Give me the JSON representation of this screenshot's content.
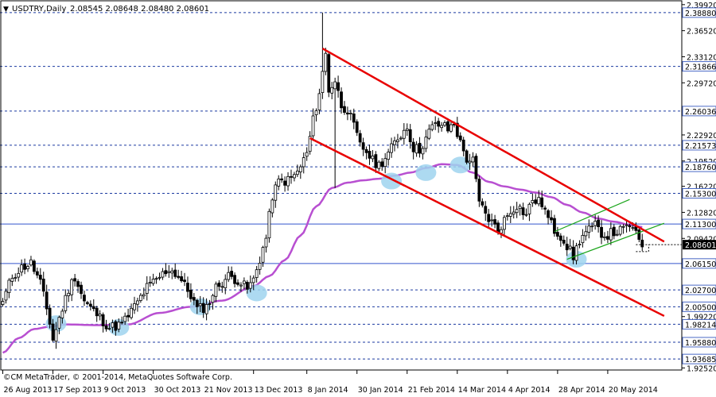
{
  "header": {
    "menu_glyph": "▼",
    "symbol": "USDTRY,Daily",
    "ohlc": "2.08545 2.08648 2.08480 2.08601"
  },
  "copyright": "©CM MetaTrader, © 2001-2014, MetaQuotes Software Corp.",
  "colors": {
    "background": "#ffffff",
    "candle": "#000000",
    "ma": "#b84fd1",
    "channel": "#e80000",
    "trendline": "#18a418",
    "highlight": "#9fd4ef",
    "h_blue": "#3355cc",
    "h_dash": "#1b3aa0",
    "current_price_bg": "#000000"
  },
  "chart_data": {
    "type": "candlestick",
    "symbol": "USDTRY",
    "timeframe": "Daily",
    "ylim": [
      1.9225,
      2.4042
    ],
    "price_axis_ticks": [
      "2.39920",
      "2.36520",
      "2.33120",
      "2.29720",
      "2.26320",
      "2.22920",
      "2.19520",
      "2.16220",
      "2.12820",
      "2.09420",
      "2.06020",
      "2.02620",
      "1.99220",
      "1.95820",
      "1.92520"
    ],
    "x_tick_labels": [
      "26 Aug 2013",
      "17 Sep 2013",
      "9 Oct 2013",
      "30 Oct 2013",
      "21 Nov 2013",
      "13 Dec 2013",
      "8 Jan 2014",
      "30 Jan 2014",
      "21 Feb 2014",
      "14 Mar 2014",
      "4 Apr 2014",
      "28 Apr 2014",
      "20 May 2014"
    ],
    "x_tick_index": [
      0,
      16,
      32,
      48,
      64,
      80,
      97,
      113,
      129,
      145,
      161,
      177,
      193
    ],
    "horizontal_levels": [
      {
        "price": "2.38880",
        "style": "dashed"
      },
      {
        "price": "2.31866",
        "style": "dashed"
      },
      {
        "price": "2.26036",
        "style": "dashed"
      },
      {
        "price": "2.21573",
        "style": "dashed"
      },
      {
        "price": "2.18760",
        "style": "dashed"
      },
      {
        "price": "2.15300",
        "style": "dashed"
      },
      {
        "price": "2.11300",
        "style": "solid"
      },
      {
        "price": "2.06150",
        "style": "solid"
      },
      {
        "price": "2.02700",
        "style": "dashed"
      },
      {
        "price": "2.00500",
        "style": "dashed"
      },
      {
        "price": "1.98214",
        "style": "dashed"
      },
      {
        "price": "1.95880",
        "style": "dashed"
      },
      {
        "price": "1.93685",
        "style": "dashed"
      }
    ],
    "current_price": "2.08601",
    "keypoints": [
      [
        0,
        2.012
      ],
      [
        3,
        2.045
      ],
      [
        6,
        2.056
      ],
      [
        9,
        2.062
      ],
      [
        12,
        2.036
      ],
      [
        15,
        1.985
      ],
      [
        16,
        1.962
      ],
      [
        18,
        1.99
      ],
      [
        21,
        2.028
      ],
      [
        23,
        2.045
      ],
      [
        26,
        2.012
      ],
      [
        30,
        1.995
      ],
      [
        34,
        1.978
      ],
      [
        38,
        1.982
      ],
      [
        42,
        2.005
      ],
      [
        46,
        2.03
      ],
      [
        49,
        2.04
      ],
      [
        53,
        2.055
      ],
      [
        56,
        2.045
      ],
      [
        60,
        2.02
      ],
      [
        62,
        2.002
      ],
      [
        65,
        2.005
      ],
      [
        68,
        2.03
      ],
      [
        72,
        2.045
      ],
      [
        75,
        2.04
      ],
      [
        78,
        2.028
      ],
      [
        80,
        2.04
      ],
      [
        84,
        2.095
      ],
      [
        86,
        2.15
      ],
      [
        88,
        2.168
      ],
      [
        91,
        2.17
      ],
      [
        94,
        2.18
      ],
      [
        97,
        2.205
      ],
      [
        99,
        2.248
      ],
      [
        101,
        2.285
      ],
      [
        103,
        2.335
      ],
      [
        104,
        2.288
      ],
      [
        106,
        2.3
      ],
      [
        108,
        2.268
      ],
      [
        110,
        2.262
      ],
      [
        112,
        2.24
      ],
      [
        114,
        2.215
      ],
      [
        116,
        2.208
      ],
      [
        118,
        2.195
      ],
      [
        120,
        2.19
      ],
      [
        123,
        2.205
      ],
      [
        126,
        2.225
      ],
      [
        129,
        2.24
      ],
      [
        131,
        2.212
      ],
      [
        133,
        2.21
      ],
      [
        135,
        2.225
      ],
      [
        137,
        2.24
      ],
      [
        140,
        2.243
      ],
      [
        142,
        2.236
      ],
      [
        144,
        2.245
      ],
      [
        146,
        2.218
      ],
      [
        148,
        2.198
      ],
      [
        150,
        2.195
      ],
      [
        152,
        2.14
      ],
      [
        155,
        2.12
      ],
      [
        158,
        2.105
      ],
      [
        160,
        2.118
      ],
      [
        162,
        2.13
      ],
      [
        164,
        2.138
      ],
      [
        167,
        2.125
      ],
      [
        169,
        2.145
      ],
      [
        172,
        2.14
      ],
      [
        174,
        2.12
      ],
      [
        176,
        2.105
      ],
      [
        178,
        2.098
      ],
      [
        180,
        2.085
      ],
      [
        182,
        2.07
      ],
      [
        184,
        2.092
      ],
      [
        186,
        2.102
      ],
      [
        189,
        2.11
      ],
      [
        192,
        2.098
      ],
      [
        195,
        2.102
      ],
      [
        198,
        2.105
      ],
      [
        200,
        2.112
      ],
      [
        202,
        2.098
      ],
      [
        204,
        2.086
      ]
    ],
    "extreme_wicks": [
      {
        "index": 102,
        "high": 2.3888
      },
      {
        "index": 106,
        "low": 2.16
      }
    ],
    "moving_average_points": [
      [
        0,
        1.945
      ],
      [
        5,
        1.964
      ],
      [
        10,
        1.976
      ],
      [
        15,
        1.979
      ],
      [
        20,
        1.982
      ],
      [
        30,
        1.981
      ],
      [
        40,
        1.982
      ],
      [
        50,
        1.997
      ],
      [
        60,
        2.005
      ],
      [
        70,
        2.013
      ],
      [
        80,
        2.032
      ],
      [
        85,
        2.045
      ],
      [
        90,
        2.066
      ],
      [
        95,
        2.098
      ],
      [
        100,
        2.136
      ],
      [
        105,
        2.16
      ],
      [
        110,
        2.167
      ],
      [
        115,
        2.17
      ],
      [
        120,
        2.172
      ],
      [
        125,
        2.176
      ],
      [
        130,
        2.18
      ],
      [
        135,
        2.186
      ],
      [
        140,
        2.191
      ],
      [
        145,
        2.19
      ],
      [
        150,
        2.18
      ],
      [
        155,
        2.168
      ],
      [
        160,
        2.162
      ],
      [
        165,
        2.158
      ],
      [
        170,
        2.154
      ],
      [
        175,
        2.148
      ],
      [
        180,
        2.138
      ],
      [
        185,
        2.128
      ],
      [
        190,
        2.12
      ],
      [
        195,
        2.116
      ],
      [
        200,
        2.112
      ],
      [
        204,
        2.109
      ]
    ],
    "channel_upper": [
      [
        102,
        2.342
      ],
      [
        211,
        2.09
      ]
    ],
    "channel_lower": [
      [
        98,
        2.225
      ],
      [
        211,
        1.993
      ]
    ],
    "green_upper": [
      [
        176,
        2.103
      ],
      [
        200,
        2.145
      ]
    ],
    "green_lower": [
      [
        180,
        2.067
      ],
      [
        211,
        2.114
      ]
    ],
    "highlights": [
      [
        17,
        1.983
      ],
      [
        37,
        1.978
      ],
      [
        63,
        2.005
      ],
      [
        81,
        2.023
      ],
      [
        124,
        2.169
      ],
      [
        135,
        2.18
      ],
      [
        146,
        2.19
      ],
      [
        183,
        2.067
      ]
    ],
    "last_close_marker": {
      "from_index": 202,
      "low": 2.077
    }
  }
}
